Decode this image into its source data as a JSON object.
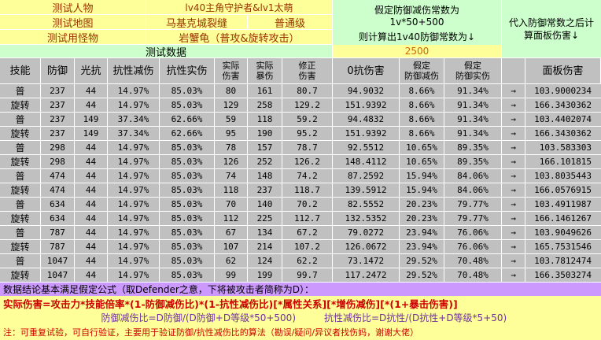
{
  "top": {
    "left_labels": [
      "测试人物",
      "测试地图",
      "测试用怪物"
    ],
    "mid_labels_line1": "lv40主角守护者&lv1太萌",
    "map_name": "马基克城裂缝",
    "difficulty": "普通级",
    "monster": "岩蟹龟（普攻&旋转攻击）",
    "assume_title": "假定防御减伤常数为",
    "assume_formula": "1v*50+500",
    "assume_result_label": "则计算出1v40防御常数为↓",
    "defense_constant": "2500",
    "right_label_line1": "代入防御常数之后计",
    "right_label_line2": "算面板伤害↓",
    "test_data_label": "测试数据"
  },
  "columns": [
    "技能",
    "防御",
    "光抗",
    "抗性减伤",
    "抗性实伤",
    "实际\n伤害",
    "实际\n暴伤",
    "修正\n伤害",
    "0抗伤害",
    "假定\n防御减伤",
    "假定\n防御实伤",
    "",
    "面板伤害"
  ],
  "rows": [
    [
      "普",
      "237",
      "44",
      "14.97%",
      "85.03%",
      "80",
      "161",
      "80.7",
      "94.9032",
      "8.66%",
      "91.34%",
      "→",
      "103.9000234"
    ],
    [
      "旋转",
      "237",
      "44",
      "14.97%",
      "85.03%",
      "129",
      "258",
      "129.2",
      "151.9392",
      "8.66%",
      "91.34%",
      "→",
      "166.3430362"
    ],
    [
      "普",
      "237",
      "149",
      "37.34%",
      "62.66%",
      "59",
      "118",
      "59.2",
      "94.4832",
      "8.66%",
      "91.34%",
      "→",
      "103.4402074"
    ],
    [
      "旋转",
      "237",
      "149",
      "37.34%",
      "62.66%",
      "95",
      "190",
      "95.2",
      "151.9392",
      "8.66%",
      "91.34%",
      "→",
      "166.3430362"
    ],
    [
      "普",
      "298",
      "44",
      "14.97%",
      "85.03%",
      "78",
      "157",
      "78.7",
      "92.5512",
      "10.65%",
      "89.35%",
      "→",
      "103.583303"
    ],
    [
      "旋转",
      "298",
      "44",
      "14.97%",
      "85.03%",
      "126",
      "252",
      "126.2",
      "148.4112",
      "10.65%",
      "89.35%",
      "→",
      "166.101815"
    ],
    [
      "普",
      "474",
      "44",
      "14.97%",
      "85.03%",
      "74",
      "148",
      "74.2",
      "87.2592",
      "15.94%",
      "84.06%",
      "→",
      "103.8035443"
    ],
    [
      "旋转",
      "474",
      "44",
      "14.97%",
      "85.03%",
      "118",
      "237",
      "118.7",
      "139.5912",
      "15.94%",
      "84.06%",
      "→",
      "166.0576915"
    ],
    [
      "普",
      "634",
      "44",
      "14.97%",
      "85.03%",
      "70",
      "140",
      "70.2",
      "82.5552",
      "20.23%",
      "79.77%",
      "→",
      "103.4911987"
    ],
    [
      "旋转",
      "634",
      "44",
      "14.97%",
      "85.03%",
      "112",
      "225",
      "112.7",
      "132.5352",
      "20.23%",
      "79.77%",
      "→",
      "166.1461267"
    ],
    [
      "普",
      "787",
      "44",
      "14.97%",
      "85.03%",
      "67",
      "134",
      "67.2",
      "79.0272",
      "23.94%",
      "76.06%",
      "→",
      "103.9049626"
    ],
    [
      "旋转",
      "787",
      "44",
      "14.97%",
      "85.03%",
      "107",
      "214",
      "107.2",
      "126.0672",
      "23.94%",
      "76.06%",
      "→",
      "165.7531546"
    ],
    [
      "普",
      "1047",
      "44",
      "14.97%",
      "85.03%",
      "62",
      "124",
      "62.2",
      "73.1472",
      "29.52%",
      "70.48%",
      "→",
      "103.7812474"
    ],
    [
      "旋转",
      "1047",
      "44",
      "14.97%",
      "85.03%",
      "99",
      "199",
      "99.7",
      "117.2472",
      "29.52%",
      "70.48%",
      "→",
      "166.3503274"
    ]
  ],
  "bottom": {
    "conclusion": "数据结论基本满足假定公式（取Defender之意，下将被攻击者简称为D）：",
    "formula": "实际伤害=攻击力*技能倍率*(1-防御减伤比)*(1-抗性减伤比)[*属性关系][*增伤减伤][*(1+暴击伤害)]",
    "defense_ratio": "防御减伤比=D防御/(D防御+D等级*50+500)",
    "resist_ratio": "抗性减伤比=D抗性/(D抗性+D等级*5+50)",
    "note": "注：可重复试验，可自行验证，主要用于验证防御/抗性减伤比的算法（勘误/疑问/异议者找伤妈，谢谢大佬）"
  },
  "colors": {
    "yellow": "#ffff99",
    "green_light": "#ccffcc",
    "lavender": "#cc99ff",
    "gray": "#c0c0c0",
    "dark_red": "#993300",
    "purple": "#7030a0",
    "red": "#cc0000"
  }
}
